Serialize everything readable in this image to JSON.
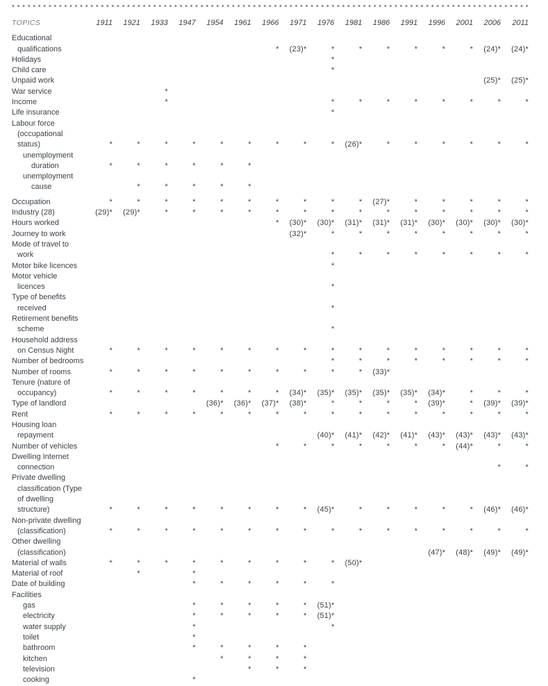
{
  "table": {
    "topics_label": "TOPICS",
    "years": [
      "1911",
      "1921",
      "1933",
      "1947",
      "1954",
      "1961",
      "1966",
      "1971",
      "1976",
      "1981",
      "1986",
      "1991",
      "1996",
      "2001",
      "2006",
      "2011"
    ],
    "legend": {
      "asterisk": "*",
      "footnote_format": "(n)*"
    },
    "rows": [
      {
        "lines": [
          "Educational",
          "qualifications"
        ],
        "indent": 0,
        "cells": [
          "",
          "",
          "",
          "",
          "",
          "",
          "*",
          "(23)*",
          "*",
          "*",
          "*",
          "*",
          "*",
          "*",
          "(24)*",
          "(24)*"
        ]
      },
      {
        "lines": [
          "Holidays"
        ],
        "indent": 0,
        "cells": [
          "",
          "",
          "",
          "",
          "",
          "",
          "",
          "",
          "*",
          "",
          "",
          "",
          "",
          "",
          "",
          ""
        ]
      },
      {
        "lines": [
          "Child care"
        ],
        "indent": 0,
        "cells": [
          "",
          "",
          "",
          "",
          "",
          "",
          "",
          "",
          "*",
          "",
          "",
          "",
          "",
          "",
          "",
          ""
        ]
      },
      {
        "lines": [
          "Unpaid work"
        ],
        "indent": 0,
        "cells": [
          "",
          "",
          "",
          "",
          "",
          "",
          "",
          "",
          "",
          "",
          "",
          "",
          "",
          "",
          "(25)*",
          "(25)*"
        ]
      },
      {
        "lines": [
          "War service"
        ],
        "indent": 0,
        "cells": [
          "",
          "",
          "*",
          "",
          "",
          "",
          "",
          "",
          "",
          "",
          "",
          "",
          "",
          "",
          "",
          ""
        ]
      },
      {
        "lines": [
          "Income"
        ],
        "indent": 0,
        "cells": [
          "",
          "",
          "*",
          "",
          "",
          "",
          "",
          "",
          "*",
          "*",
          "*",
          "*",
          "*",
          "*",
          "*",
          "*"
        ]
      },
      {
        "lines": [
          "Life insurance"
        ],
        "indent": 0,
        "cells": [
          "",
          "",
          "",
          "",
          "",
          "",
          "",
          "",
          "*",
          "",
          "",
          "",
          "",
          "",
          "",
          ""
        ]
      },
      {
        "lines": [
          "Labour force",
          "(occupational",
          "status)"
        ],
        "indent": 0,
        "cells": [
          "*",
          "*",
          "*",
          "*",
          "*",
          "*",
          "*",
          "*",
          "*",
          "(26)*",
          "*",
          "*",
          "*",
          "*",
          "*",
          "*"
        ]
      },
      {
        "lines": [
          "unemployment",
          "duration"
        ],
        "indent": 1,
        "cells": [
          "*",
          "*",
          "*",
          "*",
          "*",
          "*",
          "",
          "",
          "",
          "",
          "",
          "",
          "",
          "",
          "",
          ""
        ]
      },
      {
        "lines": [
          "unemployment",
          "cause"
        ],
        "indent": 1,
        "cells": [
          "",
          "*",
          "*",
          "*",
          "*",
          "*",
          "",
          "",
          "",
          "",
          "",
          "",
          "",
          "",
          "",
          ""
        ]
      },
      {
        "lines": [
          "Occupation"
        ],
        "indent": 0,
        "gap_before": true,
        "cells": [
          "*",
          "*",
          "*",
          "*",
          "*",
          "*",
          "*",
          "*",
          "*",
          "*",
          "(27)*",
          "*",
          "*",
          "*",
          "*",
          "*"
        ]
      },
      {
        "lines": [
          "Industry (28)"
        ],
        "indent": 0,
        "cells": [
          "(29)*",
          "(29)*",
          "*",
          "*",
          "*",
          "*",
          "*",
          "*",
          "*",
          "*",
          "*",
          "*",
          "*",
          "*",
          "*",
          "*"
        ]
      },
      {
        "lines": [
          "Hours worked"
        ],
        "indent": 0,
        "cells": [
          "",
          "",
          "",
          "",
          "",
          "",
          "*",
          "(30)*",
          "(30)*",
          "(31)*",
          "(31)*",
          "(31)*",
          "(30)*",
          "(30)*",
          "(30)*",
          "(30)*"
        ]
      },
      {
        "lines": [
          "Journey to work"
        ],
        "indent": 0,
        "cells": [
          "",
          "",
          "",
          "",
          "",
          "",
          "",
          "(32)*",
          "*",
          "*",
          "*",
          "*",
          "*",
          "*",
          "*",
          "*"
        ]
      },
      {
        "lines": [
          "Mode of travel to",
          "work"
        ],
        "indent": 0,
        "cells": [
          "",
          "",
          "",
          "",
          "",
          "",
          "",
          "",
          "*",
          "*",
          "*",
          "*",
          "*",
          "*",
          "*",
          "*"
        ]
      },
      {
        "lines": [
          "Motor bike licences"
        ],
        "indent": 0,
        "cells": [
          "",
          "",
          "",
          "",
          "",
          "",
          "",
          "",
          "*",
          "",
          "",
          "",
          "",
          "",
          "",
          ""
        ]
      },
      {
        "lines": [
          "Motor vehicle",
          "licences"
        ],
        "indent": 0,
        "cells": [
          "",
          "",
          "",
          "",
          "",
          "",
          "",
          "",
          "*",
          "",
          "",
          "",
          "",
          "",
          "",
          ""
        ]
      },
      {
        "lines": [
          "Type of benefits",
          "received"
        ],
        "indent": 0,
        "cells": [
          "",
          "",
          "",
          "",
          "",
          "",
          "",
          "",
          "*",
          "",
          "",
          "",
          "",
          "",
          "",
          ""
        ]
      },
      {
        "lines": [
          "Retirement benefits",
          "scheme"
        ],
        "indent": 0,
        "cells": [
          "",
          "",
          "",
          "",
          "",
          "",
          "",
          "",
          "*",
          "",
          "",
          "",
          "",
          "",
          "",
          ""
        ]
      },
      {
        "lines": [
          "Household address",
          "on Census Night"
        ],
        "indent": 0,
        "cells": [
          "*",
          "*",
          "*",
          "*",
          "*",
          "*",
          "*",
          "*",
          "*",
          "*",
          "*",
          "*",
          "*",
          "*",
          "*",
          "*"
        ]
      },
      {
        "lines": [
          "Number of bedrooms"
        ],
        "indent": 0,
        "cells": [
          "",
          "",
          "",
          "",
          "",
          "",
          "",
          "",
          "*",
          "*",
          "*",
          "*",
          "*",
          "*",
          "*",
          "*"
        ]
      },
      {
        "lines": [
          "Number of rooms"
        ],
        "indent": 0,
        "cells": [
          "*",
          "*",
          "*",
          "*",
          "*",
          "*",
          "*",
          "*",
          "*",
          "*",
          "(33)*",
          "",
          "",
          "",
          "",
          ""
        ]
      },
      {
        "lines": [
          "Tenure (nature of",
          "occupancy)"
        ],
        "indent": 0,
        "cells": [
          "*",
          "*",
          "*",
          "*",
          "*",
          "*",
          "*",
          "(34)*",
          "(35)*",
          "(35)*",
          "(35)*",
          "(35)*",
          "(34)*",
          "*",
          "*",
          "*"
        ]
      },
      {
        "lines": [
          "Type of landlord"
        ],
        "indent": 0,
        "cells": [
          "",
          "",
          "",
          "",
          "(36)*",
          "(36)*",
          "(37)*",
          "(38)*",
          "*",
          "*",
          "*",
          "*",
          "(39)*",
          "*",
          "(39)*",
          "(39)*"
        ]
      },
      {
        "lines": [
          "Rent"
        ],
        "indent": 0,
        "cells": [
          "*",
          "*",
          "*",
          "*",
          "*",
          "*",
          "*",
          "*",
          "*",
          "*",
          "*",
          "*",
          "*",
          "*",
          "*",
          "*"
        ]
      },
      {
        "lines": [
          "Housing loan",
          "repayment"
        ],
        "indent": 0,
        "cells": [
          "",
          "",
          "",
          "",
          "",
          "",
          "",
          "",
          "(40)*",
          "(41)*",
          "(42)*",
          "(41)*",
          "(43)*",
          "(43)*",
          "(43)*",
          "(43)*"
        ]
      },
      {
        "lines": [
          "Number of vehicles"
        ],
        "indent": 0,
        "cells": [
          "",
          "",
          "",
          "",
          "",
          "",
          "*",
          "*",
          "*",
          "*",
          "*",
          "*",
          "*",
          "(44)*",
          "*",
          "*"
        ]
      },
      {
        "lines": [
          "Dwelling Internet",
          "connection"
        ],
        "indent": 0,
        "cells": [
          "",
          "",
          "",
          "",
          "",
          "",
          "",
          "",
          "",
          "",
          "",
          "",
          "",
          "",
          "*",
          "*"
        ]
      },
      {
        "lines": [
          "Private dwelling",
          "classification (Type",
          "of dwelling",
          "structure)"
        ],
        "indent": 0,
        "cells": [
          "*",
          "*",
          "*",
          "*",
          "*",
          "*",
          "*",
          "*",
          "(45)*",
          "*",
          "*",
          "*",
          "*",
          "*",
          "(46)*",
          "(46)*"
        ]
      },
      {
        "lines": [
          "Non-private dwelling",
          "(classification)"
        ],
        "indent": 0,
        "cells": [
          "*",
          "*",
          "*",
          "*",
          "*",
          "*",
          "*",
          "*",
          "*",
          "*",
          "*",
          "*",
          "*",
          "*",
          "*",
          "*"
        ]
      },
      {
        "lines": [
          "Other dwelling",
          "(classification)"
        ],
        "indent": 0,
        "cells": [
          "",
          "",
          "",
          "",
          "",
          "",
          "",
          "",
          "",
          "",
          "",
          "",
          "(47)*",
          "(48)*",
          "(49)*",
          "(49)*"
        ]
      },
      {
        "lines": [
          "Material of walls"
        ],
        "indent": 0,
        "cells": [
          "*",
          "*",
          "*",
          "*",
          "*",
          "*",
          "*",
          "*",
          "*",
          "(50)*",
          "",
          "",
          "",
          "",
          "",
          ""
        ]
      },
      {
        "lines": [
          "Material of roof"
        ],
        "indent": 0,
        "cells": [
          "",
          "*",
          "",
          "*",
          "",
          "",
          "",
          "",
          "",
          "",
          "",
          "",
          "",
          "",
          "",
          ""
        ]
      },
      {
        "lines": [
          "Date of building"
        ],
        "indent": 0,
        "cells": [
          "",
          "",
          "",
          "*",
          "*",
          "*",
          "*",
          "*",
          "*",
          "",
          "",
          "",
          "",
          "",
          "",
          ""
        ]
      },
      {
        "lines": [
          "Facilities"
        ],
        "indent": 0,
        "cells": [
          "",
          "",
          "",
          "",
          "",
          "",
          "",
          "",
          "",
          "",
          "",
          "",
          "",
          "",
          "",
          ""
        ]
      },
      {
        "lines": [
          "gas"
        ],
        "indent": 1,
        "cells": [
          "",
          "",
          "",
          "*",
          "*",
          "*",
          "*",
          "*",
          "(51)*",
          "",
          "",
          "",
          "",
          "",
          "",
          ""
        ]
      },
      {
        "lines": [
          "electricity"
        ],
        "indent": 1,
        "cells": [
          "",
          "",
          "",
          "*",
          "*",
          "*",
          "*",
          "*",
          "(51)*",
          "",
          "",
          "",
          "",
          "",
          "",
          ""
        ]
      },
      {
        "lines": [
          "water supply"
        ],
        "indent": 1,
        "cells": [
          "",
          "",
          "",
          "*",
          "",
          "",
          "",
          "",
          "*",
          "",
          "",
          "",
          "",
          "",
          "",
          ""
        ]
      },
      {
        "lines": [
          "toilet"
        ],
        "indent": 1,
        "cells": [
          "",
          "",
          "",
          "*",
          "",
          "",
          "",
          "",
          "",
          "",
          "",
          "",
          "",
          "",
          "",
          ""
        ]
      },
      {
        "lines": [
          "bathroom"
        ],
        "indent": 1,
        "cells": [
          "",
          "",
          "",
          "*",
          "*",
          "*",
          "*",
          "*",
          "",
          "",
          "",
          "",
          "",
          "",
          "",
          ""
        ]
      },
      {
        "lines": [
          "kitchen"
        ],
        "indent": 1,
        "cells": [
          "",
          "",
          "",
          "",
          "*",
          "*",
          "*",
          "*",
          "",
          "",
          "",
          "",
          "",
          "",
          "",
          ""
        ]
      },
      {
        "lines": [
          "television"
        ],
        "indent": 1,
        "cells": [
          "",
          "",
          "",
          "",
          "",
          "*",
          "*",
          "*",
          "",
          "",
          "",
          "",
          "",
          "",
          "",
          ""
        ]
      },
      {
        "lines": [
          "cooking"
        ],
        "indent": 1,
        "cells": [
          "",
          "",
          "",
          "*",
          "",
          "",
          "",
          "",
          "",
          "",
          "",
          "",
          "",
          "",
          "",
          ""
        ]
      }
    ]
  }
}
